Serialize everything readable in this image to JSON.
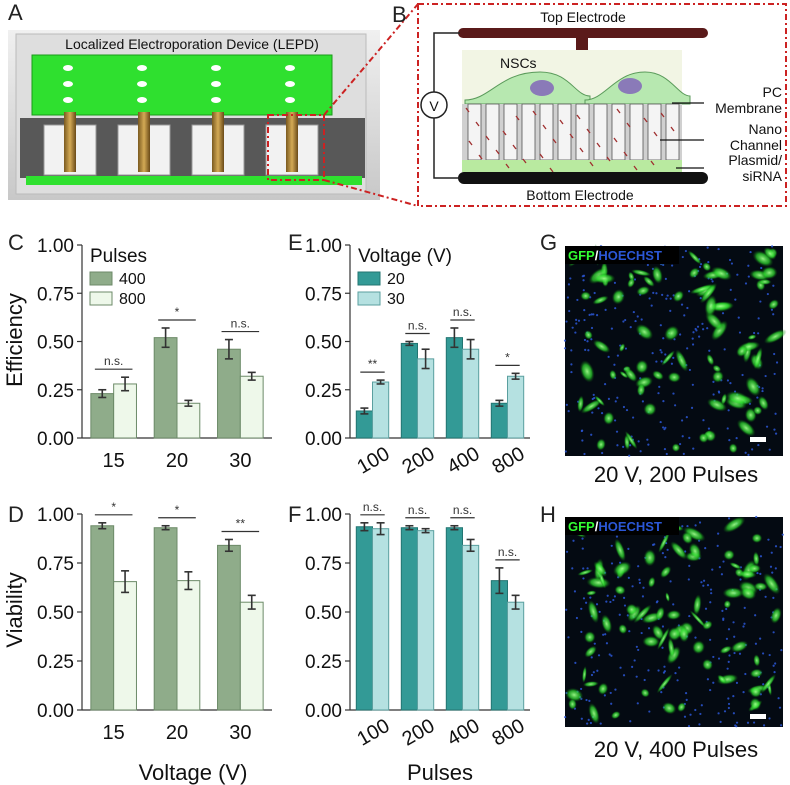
{
  "colors": {
    "dark_green": "#8fac8a",
    "light_green": "#eef8ea",
    "teal": "#339a96",
    "light_teal": "#b5e1e1",
    "electrode": "#5a1a1a",
    "device_green": "#2fe02f",
    "red_dash": "#cc2222",
    "gfp": "#33ff33",
    "hoechst": "#2b57d6"
  },
  "panel_labels": {
    "A": "A",
    "B": "B",
    "C": "C",
    "D": "D",
    "E": "E",
    "F": "F",
    "G": "G",
    "H": "H"
  },
  "panelA": {
    "title": "Localized Electroporation Device (LEPD)"
  },
  "panelB": {
    "top_electrode": "Top Electrode",
    "bottom_electrode": "Bottom Electrode",
    "nscs": "NSCs",
    "voltage_symbol": "V",
    "pc_membrane_1": "PC",
    "pc_membrane_2": "Membrane",
    "nano_channel_1": "Nano",
    "nano_channel_2": "Channel",
    "plasmid_1": "Plasmid/",
    "plasmid_2": "siRNA"
  },
  "panelG": {
    "gfp": "GFP",
    "slash": "/",
    "hoechst": "HOECHST",
    "caption": "20 V, 200 Pulses"
  },
  "panelH": {
    "gfp": "GFP",
    "slash": "/",
    "hoechst": "HOECHST",
    "caption": "20 V, 400 Pulses"
  },
  "shared_labels": {
    "voltage_axis": "Voltage (V)",
    "pulses_axis": "Pulses"
  },
  "chart_data": [
    {
      "id": "C",
      "type": "bar",
      "ylabel": "Efficiency",
      "xlabel": "",
      "ylim": [
        0,
        1
      ],
      "yticks": [
        "0.00",
        "0.25",
        "0.50",
        "0.75",
        "1.00"
      ],
      "categories": [
        "15",
        "20",
        "30"
      ],
      "legend_title": "Pulses",
      "legend_position": "top-left",
      "series": [
        {
          "name": "400",
          "values": [
            0.23,
            0.52,
            0.46
          ],
          "errors": [
            0.02,
            0.05,
            0.05
          ]
        },
        {
          "name": "800",
          "values": [
            0.28,
            0.18,
            0.32
          ],
          "errors": [
            0.035,
            0.015,
            0.02
          ]
        }
      ],
      "significance": [
        "n.s.",
        "*",
        "n.s."
      ]
    },
    {
      "id": "D",
      "type": "bar",
      "ylabel": "Viability",
      "xlabel": "Voltage (V)",
      "ylim": [
        0,
        1
      ],
      "yticks": [
        "0.00",
        "0.25",
        "0.50",
        "0.75",
        "1.00"
      ],
      "categories": [
        "15",
        "20",
        "30"
      ],
      "series": [
        {
          "name": "400",
          "values": [
            0.94,
            0.93,
            0.84
          ],
          "errors": [
            0.015,
            0.01,
            0.03
          ]
        },
        {
          "name": "800",
          "values": [
            0.655,
            0.66,
            0.55
          ],
          "errors": [
            0.055,
            0.045,
            0.035
          ]
        }
      ],
      "significance": [
        "*",
        "*",
        "**"
      ]
    },
    {
      "id": "E",
      "type": "bar",
      "ylabel": "",
      "xlabel": "",
      "ylim": [
        0,
        1
      ],
      "yticks": [
        "0.00",
        "0.25",
        "0.50",
        "0.75",
        "1.00"
      ],
      "categories": [
        "100",
        "200",
        "400",
        "800"
      ],
      "legend_title": "Voltage (V)",
      "legend_position": "top-left",
      "series": [
        {
          "name": "20",
          "values": [
            0.14,
            0.49,
            0.52,
            0.18
          ],
          "errors": [
            0.015,
            0.01,
            0.05,
            0.015
          ]
        },
        {
          "name": "30",
          "values": [
            0.29,
            0.41,
            0.46,
            0.32
          ],
          "errors": [
            0.01,
            0.05,
            0.05,
            0.015
          ]
        }
      ],
      "significance": [
        "**",
        "n.s.",
        "n.s.",
        "*"
      ]
    },
    {
      "id": "F",
      "type": "bar",
      "ylabel": "",
      "xlabel": "Pulses",
      "ylim": [
        0,
        1
      ],
      "yticks": [
        "0.00",
        "0.25",
        "0.50",
        "0.75",
        "1.00"
      ],
      "categories": [
        "100",
        "200",
        "400",
        "800"
      ],
      "series": [
        {
          "name": "20",
          "values": [
            0.935,
            0.93,
            0.93,
            0.66
          ],
          "errors": [
            0.02,
            0.01,
            0.01,
            0.065
          ]
        },
        {
          "name": "30",
          "values": [
            0.925,
            0.915,
            0.84,
            0.55
          ],
          "errors": [
            0.03,
            0.01,
            0.03,
            0.035
          ]
        }
      ],
      "significance": [
        "n.s.",
        "n.s.",
        "n.s.",
        "n.s."
      ]
    }
  ]
}
